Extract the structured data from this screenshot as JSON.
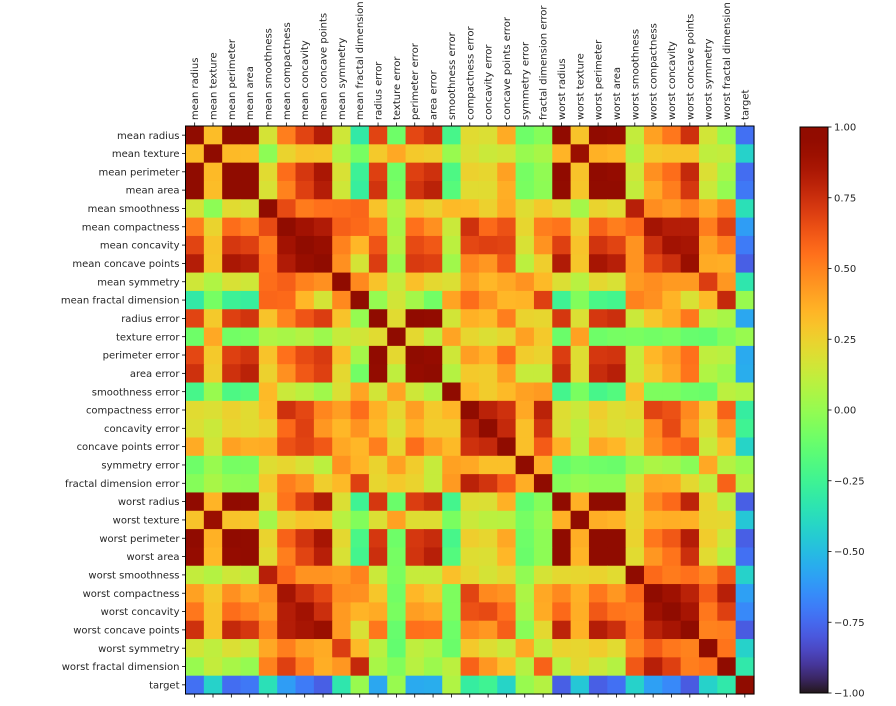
{
  "chart_data": {
    "type": "heatmap",
    "title": "",
    "xlabel": "",
    "ylabel": "",
    "colormap": "turbo",
    "value_range": [
      -1.0,
      1.0
    ],
    "colorbar": {
      "ticks": [
        1.0,
        0.75,
        0.5,
        0.25,
        0.0,
        -0.25,
        -0.5,
        -0.75,
        -1.0
      ],
      "tick_labels": [
        "1.00",
        "0.75",
        "0.50",
        "0.25",
        "0.00",
        "−0.25",
        "−0.50",
        "−0.75",
        "−1.00"
      ],
      "placement": "right"
    },
    "x_tick_position": "top",
    "labels": [
      "mean radius",
      "mean texture",
      "mean perimeter",
      "mean area",
      "mean smoothness",
      "mean compactness",
      "mean concavity",
      "mean concave points",
      "mean symmetry",
      "mean fractal dimension",
      "radius error",
      "texture error",
      "perimeter error",
      "area error",
      "smoothness error",
      "compactness error",
      "concavity error",
      "concave points error",
      "symmetry error",
      "fractal dimension error",
      "worst radius",
      "worst texture",
      "worst perimeter",
      "worst area",
      "worst smoothness",
      "worst compactness",
      "worst concavity",
      "worst concave points",
      "worst symmetry",
      "worst fractal dimension",
      "target"
    ],
    "matrix": [
      [
        1.0,
        0.32,
        1.0,
        0.99,
        0.17,
        0.51,
        0.68,
        0.82,
        0.15,
        -0.31,
        0.68,
        -0.1,
        0.67,
        0.74,
        -0.22,
        0.21,
        0.19,
        0.38,
        -0.1,
        -0.04,
        0.97,
        0.3,
        0.97,
        0.94,
        0.12,
        0.41,
        0.53,
        0.74,
        0.16,
        0.01,
        -0.73
      ],
      [
        0.32,
        1.0,
        0.33,
        0.32,
        -0.02,
        0.24,
        0.3,
        0.29,
        0.07,
        -0.08,
        0.28,
        0.39,
        0.28,
        0.26,
        0.01,
        0.19,
        0.14,
        0.16,
        0.01,
        0.05,
        0.35,
        0.91,
        0.36,
        0.34,
        0.08,
        0.28,
        0.3,
        0.3,
        0.11,
        0.12,
        -0.42
      ],
      [
        1.0,
        0.33,
        1.0,
        0.99,
        0.21,
        0.56,
        0.72,
        0.85,
        0.18,
        -0.26,
        0.69,
        -0.09,
        0.69,
        0.74,
        -0.2,
        0.25,
        0.23,
        0.41,
        -0.08,
        -0.01,
        0.97,
        0.3,
        0.97,
        0.94,
        0.15,
        0.46,
        0.56,
        0.77,
        0.19,
        0.05,
        -0.74
      ],
      [
        0.99,
        0.32,
        0.99,
        1.0,
        0.18,
        0.5,
        0.69,
        0.82,
        0.15,
        -0.28,
        0.73,
        -0.07,
        0.73,
        0.8,
        -0.17,
        0.21,
        0.21,
        0.37,
        -0.07,
        -0.02,
        0.96,
        0.29,
        0.96,
        0.96,
        0.12,
        0.39,
        0.51,
        0.72,
        0.14,
        0.0,
        -0.71
      ],
      [
        0.17,
        -0.02,
        0.21,
        0.18,
        1.0,
        0.66,
        0.52,
        0.55,
        0.56,
        0.58,
        0.3,
        0.07,
        0.3,
        0.25,
        0.33,
        0.32,
        0.25,
        0.38,
        0.2,
        0.28,
        0.21,
        0.04,
        0.24,
        0.21,
        0.81,
        0.47,
        0.43,
        0.5,
        0.39,
        0.5,
        -0.36
      ],
      [
        0.51,
        0.24,
        0.56,
        0.5,
        0.66,
        1.0,
        0.88,
        0.83,
        0.6,
        0.57,
        0.5,
        0.05,
        0.55,
        0.46,
        0.14,
        0.74,
        0.57,
        0.64,
        0.23,
        0.51,
        0.54,
        0.25,
        0.59,
        0.51,
        0.57,
        0.87,
        0.82,
        0.82,
        0.51,
        0.69,
        -0.6
      ],
      [
        0.68,
        0.3,
        0.72,
        0.69,
        0.52,
        0.88,
        1.0,
        0.92,
        0.5,
        0.34,
        0.63,
        0.08,
        0.66,
        0.62,
        0.1,
        0.67,
        0.69,
        0.68,
        0.18,
        0.45,
        0.69,
        0.3,
        0.73,
        0.68,
        0.45,
        0.75,
        0.88,
        0.86,
        0.41,
        0.51,
        -0.7
      ],
      [
        0.82,
        0.29,
        0.85,
        0.82,
        0.55,
        0.83,
        0.92,
        1.0,
        0.46,
        0.17,
        0.7,
        0.02,
        0.71,
        0.69,
        0.03,
        0.49,
        0.44,
        0.62,
        0.1,
        0.26,
        0.83,
        0.29,
        0.86,
        0.81,
        0.45,
        0.67,
        0.75,
        0.91,
        0.38,
        0.37,
        -0.78
      ],
      [
        0.15,
        0.07,
        0.18,
        0.15,
        0.56,
        0.6,
        0.5,
        0.46,
        1.0,
        0.48,
        0.3,
        0.13,
        0.31,
        0.22,
        0.19,
        0.42,
        0.34,
        0.39,
        0.45,
        0.33,
        0.19,
        0.09,
        0.22,
        0.18,
        0.43,
        0.47,
        0.43,
        0.43,
        0.7,
        0.44,
        -0.33
      ],
      [
        -0.31,
        -0.08,
        -0.26,
        -0.28,
        0.58,
        0.57,
        0.34,
        0.17,
        0.48,
        1.0,
        0.0,
        0.16,
        0.04,
        -0.09,
        0.4,
        0.56,
        0.45,
        0.34,
        0.35,
        0.69,
        -0.25,
        -0.05,
        -0.21,
        -0.23,
        0.5,
        0.46,
        0.35,
        0.18,
        0.33,
        0.77,
        0.01
      ],
      [
        0.68,
        0.28,
        0.69,
        0.73,
        0.3,
        0.5,
        0.63,
        0.7,
        0.3,
        0.0,
        1.0,
        0.21,
        0.97,
        0.95,
        0.16,
        0.36,
        0.33,
        0.51,
        0.24,
        0.23,
        0.72,
        0.19,
        0.72,
        0.75,
        0.14,
        0.29,
        0.38,
        0.53,
        0.09,
        0.05,
        -0.57
      ],
      [
        -0.1,
        0.39,
        -0.09,
        -0.07,
        0.07,
        0.05,
        0.08,
        0.02,
        0.13,
        0.16,
        0.21,
        1.0,
        0.22,
        0.11,
        0.4,
        0.23,
        0.19,
        0.23,
        0.41,
        0.28,
        -0.11,
        0.41,
        -0.1,
        -0.08,
        -0.07,
        -0.09,
        -0.07,
        -0.12,
        -0.13,
        -0.05,
        0.01
      ],
      [
        0.67,
        0.28,
        0.69,
        0.73,
        0.3,
        0.55,
        0.66,
        0.71,
        0.31,
        0.04,
        0.97,
        0.22,
        1.0,
        0.94,
        0.15,
        0.42,
        0.36,
        0.56,
        0.27,
        0.24,
        0.7,
        0.2,
        0.72,
        0.73,
        0.13,
        0.34,
        0.42,
        0.55,
        0.11,
        0.09,
        -0.56
      ],
      [
        0.74,
        0.26,
        0.74,
        0.8,
        0.25,
        0.46,
        0.62,
        0.69,
        0.22,
        -0.09,
        0.95,
        0.11,
        0.94,
        1.0,
        0.08,
        0.28,
        0.27,
        0.42,
        0.13,
        0.13,
        0.76,
        0.2,
        0.76,
        0.81,
        0.13,
        0.28,
        0.39,
        0.54,
        0.07,
        0.02,
        -0.55
      ],
      [
        -0.22,
        0.01,
        -0.2,
        -0.17,
        0.33,
        0.14,
        0.1,
        0.03,
        0.19,
        0.4,
        0.16,
        0.4,
        0.15,
        0.08,
        1.0,
        0.34,
        0.27,
        0.33,
        0.41,
        0.43,
        -0.23,
        -0.07,
        -0.22,
        -0.18,
        0.31,
        -0.06,
        -0.06,
        -0.1,
        -0.11,
        0.1,
        0.07
      ],
      [
        0.21,
        0.19,
        0.25,
        0.21,
        0.32,
        0.74,
        0.67,
        0.49,
        0.42,
        0.56,
        0.36,
        0.23,
        0.42,
        0.28,
        0.34,
        1.0,
        0.8,
        0.74,
        0.39,
        0.8,
        0.2,
        0.14,
        0.26,
        0.2,
        0.23,
        0.68,
        0.64,
        0.48,
        0.28,
        0.59,
        -0.29
      ],
      [
        0.19,
        0.14,
        0.23,
        0.21,
        0.25,
        0.57,
        0.69,
        0.44,
        0.34,
        0.45,
        0.33,
        0.19,
        0.36,
        0.27,
        0.27,
        0.8,
        1.0,
        0.77,
        0.31,
        0.73,
        0.19,
        0.1,
        0.23,
        0.19,
        0.17,
        0.48,
        0.66,
        0.44,
        0.2,
        0.44,
        -0.25
      ],
      [
        0.38,
        0.16,
        0.41,
        0.37,
        0.38,
        0.64,
        0.68,
        0.62,
        0.39,
        0.34,
        0.51,
        0.23,
        0.56,
        0.42,
        0.33,
        0.74,
        0.77,
        1.0,
        0.31,
        0.61,
        0.36,
        0.09,
        0.39,
        0.34,
        0.22,
        0.45,
        0.55,
        0.6,
        0.14,
        0.31,
        -0.41
      ],
      [
        -0.1,
        0.01,
        -0.08,
        -0.07,
        0.2,
        0.23,
        0.18,
        0.1,
        0.45,
        0.35,
        0.24,
        0.41,
        0.27,
        0.13,
        0.41,
        0.39,
        0.31,
        0.31,
        1.0,
        0.37,
        -0.13,
        -0.08,
        -0.1,
        -0.11,
        -0.01,
        0.06,
        0.04,
        -0.03,
        0.39,
        0.08,
        0.01
      ],
      [
        -0.04,
        0.05,
        -0.01,
        -0.02,
        0.28,
        0.51,
        0.45,
        0.26,
        0.33,
        0.69,
        0.23,
        0.28,
        0.24,
        0.13,
        0.43,
        0.8,
        0.73,
        0.61,
        0.37,
        1.0,
        -0.04,
        -0.0,
        -0.02,
        -0.02,
        0.17,
        0.39,
        0.38,
        0.22,
        0.11,
        0.59,
        0.08
      ],
      [
        0.97,
        0.35,
        0.97,
        0.96,
        0.21,
        0.54,
        0.69,
        0.83,
        0.19,
        -0.25,
        0.72,
        -0.11,
        0.7,
        0.76,
        -0.23,
        0.2,
        0.19,
        0.36,
        -0.13,
        -0.04,
        1.0,
        0.36,
        0.99,
        0.98,
        0.22,
        0.48,
        0.57,
        0.79,
        0.24,
        0.09,
        -0.78
      ],
      [
        0.3,
        0.91,
        0.3,
        0.29,
        0.04,
        0.25,
        0.3,
        0.29,
        0.09,
        -0.05,
        0.19,
        0.41,
        0.2,
        0.2,
        -0.07,
        0.14,
        0.1,
        0.09,
        -0.08,
        -0.0,
        0.36,
        1.0,
        0.37,
        0.35,
        0.23,
        0.36,
        0.37,
        0.36,
        0.23,
        0.22,
        -0.46
      ],
      [
        0.97,
        0.36,
        0.97,
        0.96,
        0.24,
        0.59,
        0.73,
        0.86,
        0.22,
        -0.21,
        0.72,
        -0.1,
        0.72,
        0.76,
        -0.22,
        0.26,
        0.23,
        0.39,
        -0.1,
        -0.02,
        0.99,
        0.37,
        1.0,
        0.98,
        0.24,
        0.53,
        0.62,
        0.82,
        0.27,
        0.14,
        -0.78
      ],
      [
        0.94,
        0.34,
        0.94,
        0.96,
        0.21,
        0.51,
        0.68,
        0.81,
        0.18,
        -0.23,
        0.75,
        -0.08,
        0.73,
        0.81,
        -0.18,
        0.2,
        0.19,
        0.34,
        -0.11,
        -0.02,
        0.98,
        0.35,
        0.98,
        1.0,
        0.21,
        0.44,
        0.54,
        0.75,
        0.21,
        0.08,
        -0.73
      ],
      [
        0.12,
        0.08,
        0.15,
        0.12,
        0.81,
        0.57,
        0.45,
        0.45,
        0.43,
        0.5,
        0.14,
        -0.07,
        0.13,
        0.13,
        0.31,
        0.23,
        0.17,
        0.22,
        -0.01,
        0.17,
        0.22,
        0.23,
        0.24,
        0.21,
        1.0,
        0.57,
        0.52,
        0.55,
        0.49,
        0.62,
        -0.42
      ],
      [
        0.41,
        0.28,
        0.46,
        0.39,
        0.47,
        0.87,
        0.75,
        0.67,
        0.47,
        0.46,
        0.29,
        -0.09,
        0.34,
        0.28,
        -0.06,
        0.68,
        0.48,
        0.45,
        0.06,
        0.39,
        0.48,
        0.36,
        0.53,
        0.44,
        0.57,
        1.0,
        0.89,
        0.8,
        0.61,
        0.81,
        -0.59
      ],
      [
        0.53,
        0.3,
        0.56,
        0.51,
        0.43,
        0.82,
        0.88,
        0.75,
        0.43,
        0.35,
        0.38,
        -0.07,
        0.42,
        0.39,
        -0.06,
        0.64,
        0.66,
        0.55,
        0.04,
        0.38,
        0.57,
        0.37,
        0.62,
        0.54,
        0.52,
        0.89,
        1.0,
        0.86,
        0.53,
        0.69,
        -0.66
      ],
      [
        0.74,
        0.3,
        0.77,
        0.72,
        0.5,
        0.82,
        0.86,
        0.91,
        0.43,
        0.18,
        0.53,
        -0.12,
        0.55,
        0.54,
        -0.1,
        0.48,
        0.44,
        0.6,
        -0.03,
        0.22,
        0.79,
        0.36,
        0.82,
        0.75,
        0.55,
        0.8,
        0.86,
        1.0,
        0.5,
        0.51,
        -0.79
      ],
      [
        0.16,
        0.11,
        0.19,
        0.14,
        0.39,
        0.51,
        0.41,
        0.38,
        0.7,
        0.33,
        0.09,
        -0.13,
        0.11,
        0.07,
        -0.11,
        0.28,
        0.2,
        0.14,
        0.39,
        0.11,
        0.24,
        0.23,
        0.27,
        0.21,
        0.49,
        0.61,
        0.53,
        0.5,
        1.0,
        0.54,
        -0.42
      ],
      [
        0.01,
        0.12,
        0.05,
        0.0,
        0.5,
        0.69,
        0.51,
        0.37,
        0.44,
        0.77,
        0.05,
        -0.05,
        0.09,
        0.02,
        0.1,
        0.59,
        0.44,
        0.31,
        0.08,
        0.59,
        0.09,
        0.22,
        0.14,
        0.08,
        0.62,
        0.81,
        0.69,
        0.51,
        0.54,
        1.0,
        -0.32
      ],
      [
        -0.73,
        -0.42,
        -0.74,
        -0.71,
        -0.36,
        -0.6,
        -0.7,
        -0.78,
        -0.33,
        0.01,
        -0.57,
        0.01,
        -0.56,
        -0.55,
        0.07,
        -0.29,
        -0.25,
        -0.41,
        0.01,
        0.08,
        -0.78,
        -0.46,
        -0.78,
        -0.73,
        -0.42,
        -0.59,
        -0.66,
        -0.79,
        -0.42,
        -0.32,
        1.0
      ]
    ]
  }
}
